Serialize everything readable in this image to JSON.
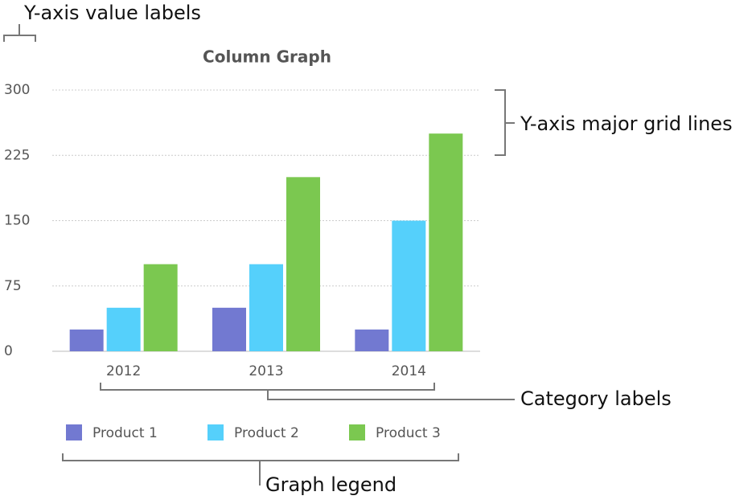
{
  "chart_data": {
    "type": "bar",
    "title": "Column Graph",
    "categories": [
      "2012",
      "2013",
      "2014"
    ],
    "series": [
      {
        "name": "Product 1",
        "color": "#7279d1",
        "values": [
          25,
          50,
          25
        ]
      },
      {
        "name": "Product 2",
        "color": "#55d0fb",
        "values": [
          50,
          100,
          150
        ]
      },
      {
        "name": "Product 3",
        "color": "#7bc850",
        "values": [
          100,
          200,
          250
        ]
      }
    ],
    "ylim": [
      0,
      300
    ],
    "yticks": [
      0,
      75,
      150,
      225,
      300
    ],
    "grid": true,
    "legend": "bottom",
    "annotations": [
      "Y-axis value labels",
      "Y-axis major grid lines",
      "Category labels",
      "Graph legend"
    ]
  }
}
